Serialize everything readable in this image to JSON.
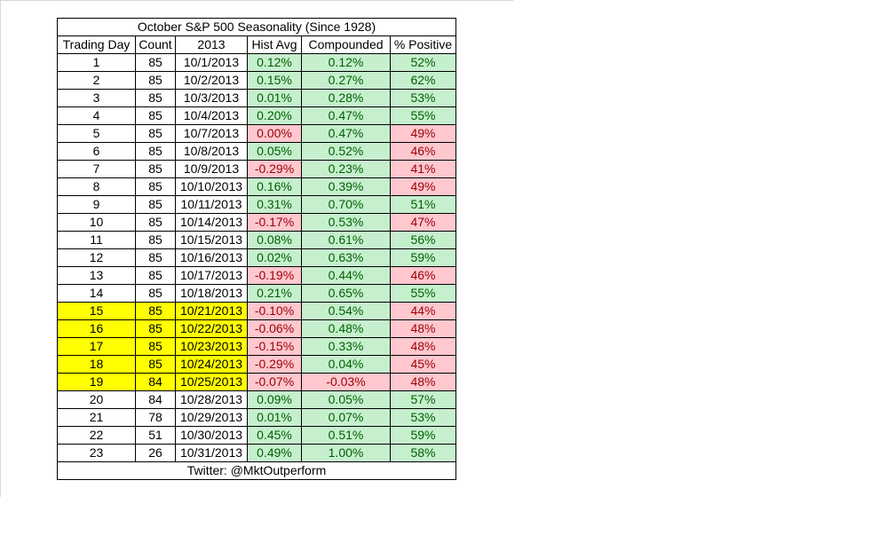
{
  "chart_data": {
    "type": "table",
    "title": "October S&P 500 Seasonality (Since 1928)",
    "columns": [
      "Trading Day",
      "Count",
      "2013",
      "Hist Avg",
      "Compounded",
      "% Positive"
    ],
    "rows": [
      {
        "day": "1",
        "count": "85",
        "date": "10/1/2013",
        "hist": "0.12%",
        "comp": "0.12%",
        "pos": "52%",
        "highlight": false
      },
      {
        "day": "2",
        "count": "85",
        "date": "10/2/2013",
        "hist": "0.15%",
        "comp": "0.27%",
        "pos": "62%",
        "highlight": false
      },
      {
        "day": "3",
        "count": "85",
        "date": "10/3/2013",
        "hist": "0.01%",
        "comp": "0.28%",
        "pos": "53%",
        "highlight": false
      },
      {
        "day": "4",
        "count": "85",
        "date": "10/4/2013",
        "hist": "0.20%",
        "comp": "0.47%",
        "pos": "55%",
        "highlight": false
      },
      {
        "day": "5",
        "count": "85",
        "date": "10/7/2013",
        "hist": "0.00%",
        "comp": "0.47%",
        "pos": "49%",
        "highlight": false,
        "hist_neg": true
      },
      {
        "day": "6",
        "count": "85",
        "date": "10/8/2013",
        "hist": "0.05%",
        "comp": "0.52%",
        "pos": "46%",
        "highlight": false
      },
      {
        "day": "7",
        "count": "85",
        "date": "10/9/2013",
        "hist": "-0.29%",
        "comp": "0.23%",
        "pos": "41%",
        "highlight": false
      },
      {
        "day": "8",
        "count": "85",
        "date": "10/10/2013",
        "hist": "0.16%",
        "comp": "0.39%",
        "pos": "49%",
        "highlight": false
      },
      {
        "day": "9",
        "count": "85",
        "date": "10/11/2013",
        "hist": "0.31%",
        "comp": "0.70%",
        "pos": "51%",
        "highlight": false
      },
      {
        "day": "10",
        "count": "85",
        "date": "10/14/2013",
        "hist": "-0.17%",
        "comp": "0.53%",
        "pos": "47%",
        "highlight": false
      },
      {
        "day": "11",
        "count": "85",
        "date": "10/15/2013",
        "hist": "0.08%",
        "comp": "0.61%",
        "pos": "56%",
        "highlight": false
      },
      {
        "day": "12",
        "count": "85",
        "date": "10/16/2013",
        "hist": "0.02%",
        "comp": "0.63%",
        "pos": "59%",
        "highlight": false
      },
      {
        "day": "13",
        "count": "85",
        "date": "10/17/2013",
        "hist": "-0.19%",
        "comp": "0.44%",
        "pos": "46%",
        "highlight": false
      },
      {
        "day": "14",
        "count": "85",
        "date": "10/18/2013",
        "hist": "0.21%",
        "comp": "0.65%",
        "pos": "55%",
        "highlight": false
      },
      {
        "day": "15",
        "count": "85",
        "date": "10/21/2013",
        "hist": "-0.10%",
        "comp": "0.54%",
        "pos": "44%",
        "highlight": true
      },
      {
        "day": "16",
        "count": "85",
        "date": "10/22/2013",
        "hist": "-0.06%",
        "comp": "0.48%",
        "pos": "48%",
        "highlight": true
      },
      {
        "day": "17",
        "count": "85",
        "date": "10/23/2013",
        "hist": "-0.15%",
        "comp": "0.33%",
        "pos": "48%",
        "highlight": true
      },
      {
        "day": "18",
        "count": "85",
        "date": "10/24/2013",
        "hist": "-0.29%",
        "comp": "0.04%",
        "pos": "45%",
        "highlight": true
      },
      {
        "day": "19",
        "count": "84",
        "date": "10/25/2013",
        "hist": "-0.07%",
        "comp": "-0.03%",
        "pos": "48%",
        "highlight": true
      },
      {
        "day": "20",
        "count": "84",
        "date": "10/28/2013",
        "hist": "0.09%",
        "comp": "0.05%",
        "pos": "57%",
        "highlight": false
      },
      {
        "day": "21",
        "count": "78",
        "date": "10/29/2013",
        "hist": "0.01%",
        "comp": "0.07%",
        "pos": "53%",
        "highlight": false
      },
      {
        "day": "22",
        "count": "51",
        "date": "10/30/2013",
        "hist": "0.45%",
        "comp": "0.51%",
        "pos": "59%",
        "highlight": false
      },
      {
        "day": "23",
        "count": "26",
        "date": "10/31/2013",
        "hist": "0.49%",
        "comp": "1.00%",
        "pos": "58%",
        "highlight": false
      }
    ],
    "footer": "Twitter: @MktOutperform"
  },
  "colors": {
    "positive_fill": "#c6efce",
    "positive_text": "#006100",
    "negative_fill": "#ffc7ce",
    "negative_text": "#9c0006",
    "highlight_fill": "#ffff00"
  }
}
